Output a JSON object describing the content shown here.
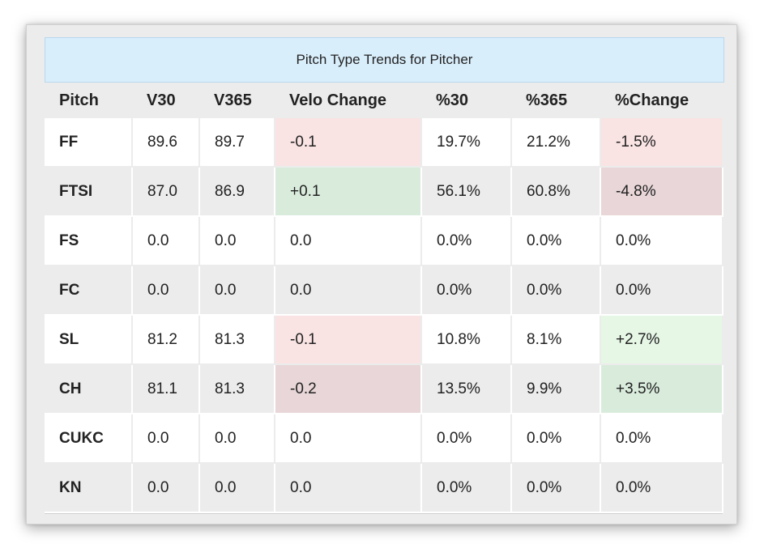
{
  "title": "Pitch Type Trends for Pitcher",
  "columns": [
    "Pitch",
    "V30",
    "V365",
    "Velo Change",
    "%30",
    "%365",
    "%Change"
  ],
  "rows": [
    {
      "pitch": "FF",
      "v30": "89.6",
      "v365": "89.7",
      "velo_change": "-0.1",
      "p30": "19.7%",
      "p365": "21.2%",
      "p_change": "-1.5%",
      "velo_bg": "#f9e3e3",
      "change_bg": "#f9e3e3"
    },
    {
      "pitch": "FTSI",
      "v30": "87.0",
      "v365": "86.9",
      "velo_change": "+0.1",
      "p30": "56.1%",
      "p365": "60.8%",
      "p_change": "-4.8%",
      "velo_bg": "#d9ecdc",
      "change_bg": "#e8d6d8"
    },
    {
      "pitch": "FS",
      "v30": "0.0",
      "v365": "0.0",
      "velo_change": "0.0",
      "p30": "0.0%",
      "p365": "0.0%",
      "p_change": "0.0%",
      "velo_bg": "",
      "change_bg": ""
    },
    {
      "pitch": "FC",
      "v30": "0.0",
      "v365": "0.0",
      "velo_change": "0.0",
      "p30": "0.0%",
      "p365": "0.0%",
      "p_change": "0.0%",
      "velo_bg": "",
      "change_bg": ""
    },
    {
      "pitch": "SL",
      "v30": "81.2",
      "v365": "81.3",
      "velo_change": "-0.1",
      "p30": "10.8%",
      "p365": "8.1%",
      "p_change": "+2.7%",
      "velo_bg": "#f9e3e3",
      "change_bg": "#e6f7e6"
    },
    {
      "pitch": "CH",
      "v30": "81.1",
      "v365": "81.3",
      "velo_change": "-0.2",
      "p30": "13.5%",
      "p365": "9.9%",
      "p_change": "+3.5%",
      "velo_bg": "#e8d6d8",
      "change_bg": "#d9ecdc"
    },
    {
      "pitch": "CUKC",
      "v30": "0.0",
      "v365": "0.0",
      "velo_change": "0.0",
      "p30": "0.0%",
      "p365": "0.0%",
      "p_change": "0.0%",
      "velo_bg": "",
      "change_bg": ""
    },
    {
      "pitch": "KN",
      "v30": "0.0",
      "v365": "0.0",
      "velo_change": "0.0",
      "p30": "0.0%",
      "p365": "0.0%",
      "p_change": "0.0%",
      "velo_bg": "",
      "change_bg": ""
    }
  ]
}
